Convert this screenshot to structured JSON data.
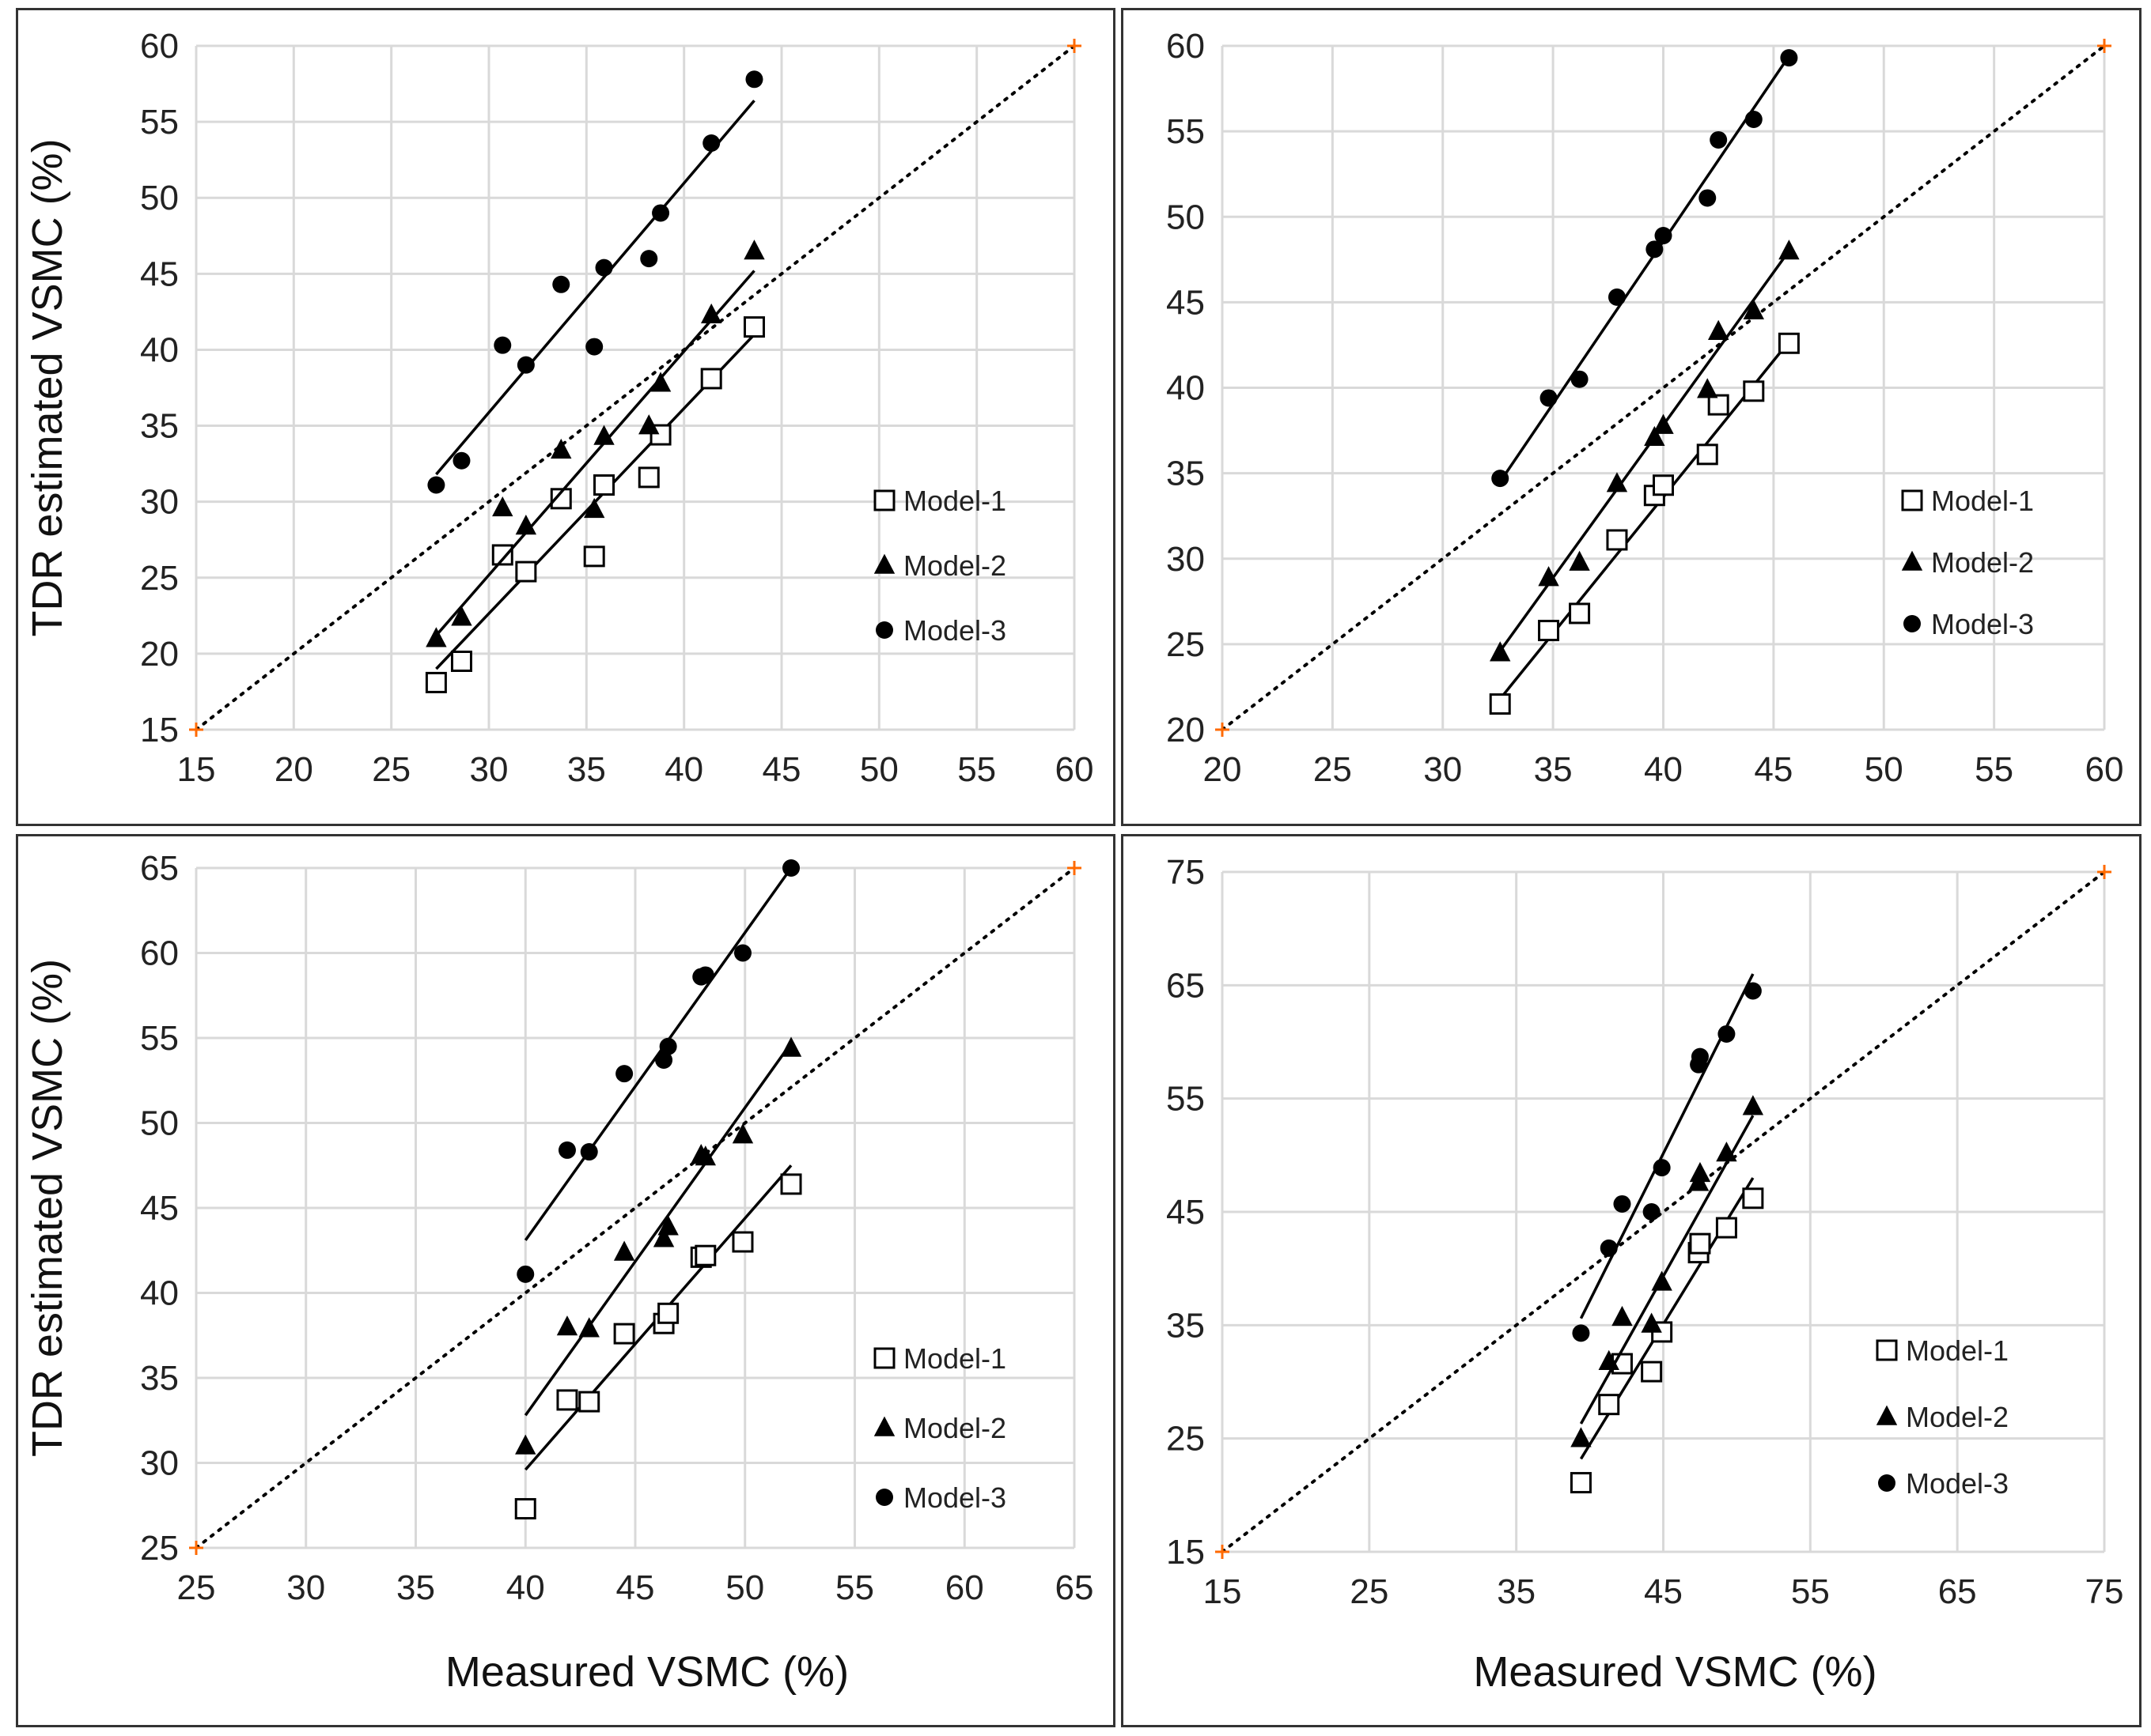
{
  "colors": {
    "grid": "#d9d9d9",
    "marker": "#000000",
    "one_to_one": "#000000",
    "endpoint": "#ff6a00"
  },
  "chart_data": [
    {
      "type": "scatter",
      "xlabel": "",
      "ylabel": "TDR estimated VSMC (%)",
      "xlim": [
        15,
        60
      ],
      "ylim": [
        15,
        60
      ],
      "xticks": [
        15,
        20,
        25,
        30,
        35,
        40,
        45,
        50,
        55,
        60
      ],
      "yticks": [
        15,
        20,
        25,
        30,
        35,
        40,
        45,
        50,
        55,
        60
      ],
      "legend": [
        "Model-1",
        "Model-2",
        "Model-3"
      ],
      "series": [
        {
          "name": "Model-1",
          "marker": "open-square",
          "x": [
            27.3,
            28.6,
            30.7,
            31.9,
            33.7,
            35.4,
            35.9,
            38.2,
            38.8,
            41.4,
            43.6
          ],
          "y": [
            18.1,
            19.5,
            26.5,
            25.4,
            30.2,
            26.4,
            31.1,
            31.6,
            34.4,
            38.1,
            41.5
          ],
          "fit": [
            [
              27.3,
              19.0
            ],
            [
              43.6,
              41.0
            ]
          ]
        },
        {
          "name": "Model-2",
          "marker": "filled-triangle",
          "x": [
            27.3,
            28.6,
            30.7,
            31.9,
            33.7,
            35.4,
            35.9,
            38.2,
            38.8,
            41.4,
            43.6
          ],
          "y": [
            21.0,
            22.4,
            29.6,
            28.4,
            33.4,
            29.5,
            34.3,
            35.0,
            37.8,
            42.3,
            46.5
          ],
          "fit": [
            [
              27.3,
              21.2
            ],
            [
              43.6,
              45.2
            ]
          ]
        },
        {
          "name": "Model-3",
          "marker": "filled-circle",
          "x": [
            27.3,
            28.6,
            30.7,
            31.9,
            33.7,
            35.4,
            35.9,
            38.2,
            38.8,
            41.4,
            43.6
          ],
          "y": [
            31.1,
            32.7,
            40.3,
            39.0,
            44.3,
            40.2,
            45.4,
            46.0,
            49.0,
            53.6,
            57.8
          ],
          "fit": [
            [
              27.3,
              31.8
            ],
            [
              43.6,
              56.4
            ]
          ]
        }
      ]
    },
    {
      "type": "scatter",
      "xlabel": "",
      "ylabel": "",
      "xlim": [
        20,
        60
      ],
      "ylim": [
        20,
        60
      ],
      "xticks": [
        20,
        25,
        30,
        35,
        40,
        45,
        50,
        55,
        60
      ],
      "yticks": [
        20,
        25,
        30,
        35,
        40,
        45,
        50,
        55,
        60
      ],
      "legend": [
        "Model-1",
        "Model-2",
        "Model-3"
      ],
      "series": [
        {
          "name": "Model-1",
          "marker": "open-square",
          "x": [
            32.6,
            34.8,
            36.2,
            37.9,
            39.6,
            40.0,
            42.0,
            42.5,
            44.1,
            45.7
          ],
          "y": [
            21.5,
            25.8,
            26.8,
            31.1,
            33.7,
            34.3,
            36.1,
            39.0,
            39.8,
            42.6
          ],
          "fit": [
            [
              32.6,
              21.8
            ],
            [
              45.7,
              42.7
            ]
          ]
        },
        {
          "name": "Model-2",
          "marker": "filled-triangle",
          "x": [
            32.6,
            34.8,
            36.2,
            37.9,
            39.6,
            40.0,
            42.0,
            42.5,
            44.1,
            45.7
          ],
          "y": [
            24.5,
            28.9,
            29.8,
            34.4,
            37.1,
            37.8,
            39.9,
            43.3,
            44.5,
            48.0
          ],
          "fit": [
            [
              32.6,
              24.6
            ],
            [
              45.7,
              48.0
            ]
          ]
        },
        {
          "name": "Model-3",
          "marker": "filled-circle",
          "x": [
            32.6,
            34.8,
            36.2,
            37.9,
            39.6,
            40.0,
            42.0,
            42.5,
            44.1,
            45.7
          ],
          "y": [
            34.7,
            39.4,
            40.5,
            45.3,
            48.1,
            48.9,
            51.1,
            54.5,
            55.7,
            59.3
          ],
          "fit": [
            [
              32.6,
              34.5
            ],
            [
              45.7,
              59.4
            ]
          ]
        }
      ]
    },
    {
      "type": "scatter",
      "xlabel": "Measured VSMC (%)",
      "ylabel": "TDR estimated VSMC (%)",
      "xlim": [
        25,
        65
      ],
      "ylim": [
        25,
        65
      ],
      "xticks": [
        25,
        30,
        35,
        40,
        45,
        50,
        55,
        60,
        65
      ],
      "yticks": [
        25,
        30,
        35,
        40,
        45,
        50,
        55,
        60,
        65
      ],
      "legend": [
        "Model-1",
        "Model-2",
        "Model-3"
      ],
      "series": [
        {
          "name": "Model-1",
          "marker": "open-square",
          "x": [
            40.0,
            41.9,
            42.9,
            44.5,
            46.3,
            46.5,
            48.0,
            48.2,
            49.9,
            52.1
          ],
          "y": [
            27.3,
            33.7,
            33.6,
            37.6,
            38.2,
            38.8,
            42.1,
            42.2,
            43.0,
            46.4
          ],
          "fit": [
            [
              40.0,
              29.6
            ],
            [
              52.1,
              47.5
            ]
          ]
        },
        {
          "name": "Model-2",
          "marker": "filled-triangle",
          "x": [
            40.0,
            41.9,
            42.9,
            44.5,
            46.3,
            46.5,
            48.0,
            48.2,
            49.9,
            52.1
          ],
          "y": [
            31.0,
            38.0,
            37.9,
            42.4,
            43.2,
            43.9,
            48.1,
            48.0,
            49.3,
            54.4
          ],
          "fit": [
            [
              40.0,
              32.8
            ],
            [
              52.1,
              54.7
            ]
          ]
        },
        {
          "name": "Model-3",
          "marker": "filled-circle",
          "x": [
            40.0,
            41.9,
            42.9,
            44.5,
            46.3,
            46.5,
            48.0,
            48.2,
            49.9,
            52.1
          ],
          "y": [
            41.1,
            48.4,
            48.3,
            52.9,
            53.7,
            54.5,
            58.6,
            58.7,
            60.0,
            65.0
          ],
          "fit": [
            [
              40.0,
              43.1
            ],
            [
              52.1,
              65.0
            ]
          ]
        }
      ]
    },
    {
      "type": "scatter",
      "xlabel": "Measured VSMC (%)",
      "ylabel": "",
      "xlim": [
        15,
        75
      ],
      "ylim": [
        15,
        75
      ],
      "xticks": [
        15,
        25,
        35,
        45,
        55,
        65,
        75
      ],
      "yticks": [
        15,
        25,
        35,
        45,
        55,
        65,
        75
      ],
      "legend": [
        "Model-1",
        "Model-2",
        "Model-3"
      ],
      "series": [
        {
          "name": "Model-1",
          "marker": "open-square",
          "x": [
            39.4,
            41.3,
            42.2,
            44.2,
            44.9,
            47.4,
            47.5,
            49.3,
            51.1
          ],
          "y": [
            21.1,
            28.0,
            31.6,
            30.9,
            34.4,
            41.4,
            42.2,
            43.6,
            46.2
          ],
          "fit": [
            [
              39.4,
              23.2
            ],
            [
              51.1,
              48.0
            ]
          ]
        },
        {
          "name": "Model-2",
          "marker": "filled-triangle",
          "x": [
            39.4,
            41.3,
            42.2,
            44.2,
            44.9,
            47.4,
            47.5,
            49.3,
            51.1
          ],
          "y": [
            25.0,
            31.8,
            35.7,
            35.1,
            38.8,
            47.6,
            48.4,
            50.2,
            54.3
          ],
          "fit": [
            [
              39.4,
              26.3
            ],
            [
              51.1,
              53.5
            ]
          ]
        },
        {
          "name": "Model-3",
          "marker": "filled-circle",
          "x": [
            39.4,
            41.3,
            42.2,
            44.2,
            44.9,
            47.4,
            47.5,
            49.3,
            51.1
          ],
          "y": [
            34.3,
            41.8,
            45.7,
            45.0,
            48.9,
            58.0,
            58.7,
            60.7,
            64.5
          ],
          "fit": [
            [
              39.4,
              35.6
            ],
            [
              51.1,
              66.0
            ]
          ]
        }
      ]
    }
  ]
}
